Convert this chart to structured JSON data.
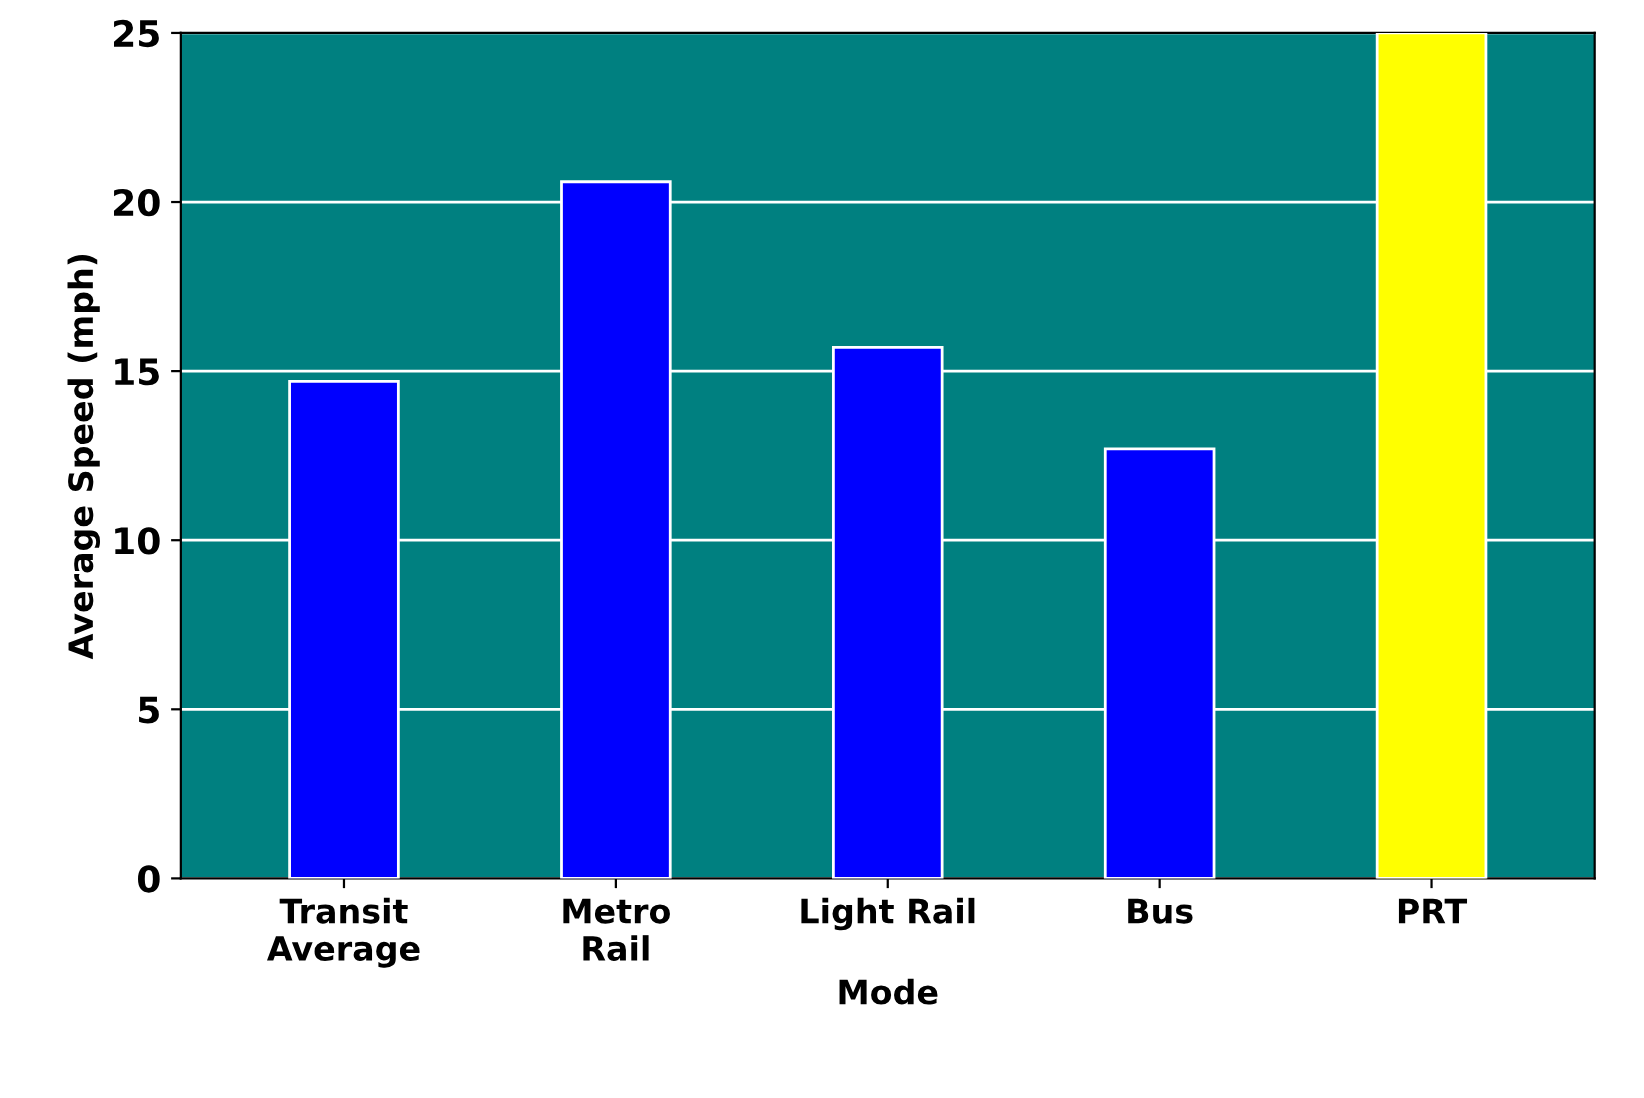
{
  "chart_data": {
    "type": "bar",
    "xlabel": "Mode",
    "ylabel": "Average Speed (mph)",
    "categories": [
      "Transit\nAverage",
      "Metro\nRail",
      "Light Rail",
      "Bus",
      "PRT"
    ],
    "values": [
      14.7,
      20.6,
      15.7,
      12.7,
      25
    ],
    "colors": [
      "#0000ff",
      "#0000ff",
      "#0000ff",
      "#0000ff",
      "#ffff00"
    ],
    "ylim": [
      0,
      25
    ],
    "yticks": [
      0,
      5,
      10,
      15,
      20,
      25
    ],
    "grid": "y"
  }
}
